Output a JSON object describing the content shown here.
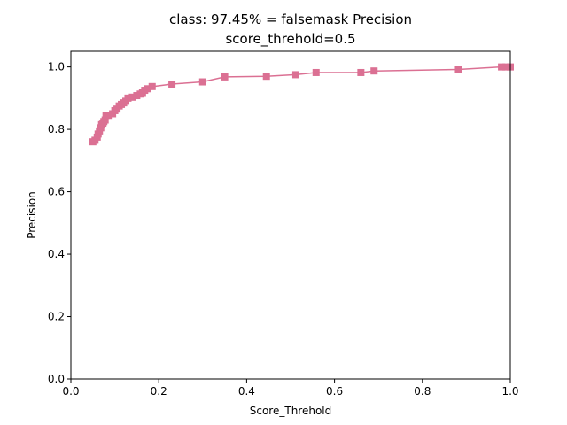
{
  "chart_data": {
    "type": "line",
    "title": "class: 97.45% = falsemask Precision",
    "subtitle": "score_threhold=0.5",
    "xlabel": "Score_Threhold",
    "ylabel": "Precision",
    "xlim": [
      0.0,
      1.0
    ],
    "ylim": [
      0.0,
      1.05
    ],
    "xticks": [
      "0.0",
      "0.2",
      "0.4",
      "0.6",
      "0.8",
      "1.0"
    ],
    "yticks": [
      "0.0",
      "0.2",
      "0.4",
      "0.6",
      "0.8",
      "1.0"
    ],
    "grid": false,
    "marker": "square",
    "series": [
      {
        "color": "#db7093",
        "x": [
          0.05,
          0.055,
          0.06,
          0.062,
          0.065,
          0.068,
          0.07,
          0.073,
          0.075,
          0.078,
          0.08,
          0.085,
          0.095,
          0.1,
          0.105,
          0.11,
          0.115,
          0.12,
          0.125,
          0.13,
          0.14,
          0.15,
          0.158,
          0.163,
          0.168,
          0.175,
          0.185,
          0.23,
          0.3,
          0.35,
          0.445,
          0.512,
          0.558,
          0.66,
          0.69,
          0.882,
          0.98,
          0.99,
          1.0
        ],
        "y": [
          0.76,
          0.765,
          0.775,
          0.785,
          0.795,
          0.805,
          0.815,
          0.82,
          0.825,
          0.83,
          0.845,
          0.845,
          0.85,
          0.86,
          0.865,
          0.875,
          0.88,
          0.885,
          0.89,
          0.9,
          0.903,
          0.908,
          0.913,
          0.918,
          0.925,
          0.93,
          0.937,
          0.945,
          0.952,
          0.968,
          0.97,
          0.975,
          0.982,
          0.982,
          0.987,
          0.992,
          1.0,
          1.0,
          1.0
        ]
      }
    ]
  }
}
